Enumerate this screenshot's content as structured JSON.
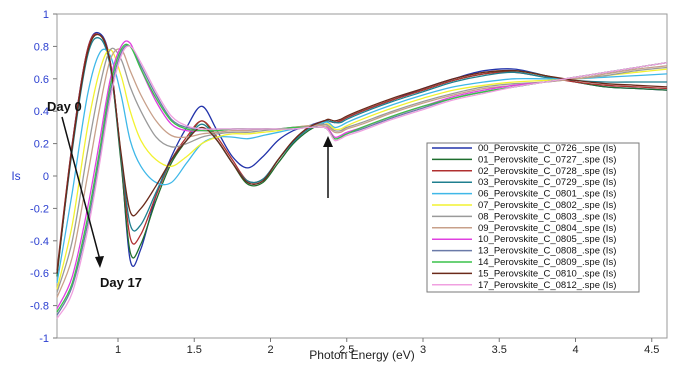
{
  "chart_data": {
    "type": "line",
    "title": "",
    "xlabel": "Photon Energy (eV)",
    "ylabel": "Is",
    "xlim": [
      0.6,
      4.6
    ],
    "ylim": [
      -1,
      1
    ],
    "x_ticks": [
      1,
      1.5,
      2,
      2.5,
      3,
      3.5,
      4,
      4.5
    ],
    "x_tick_labels": [
      "1",
      "1.5",
      "2",
      "2.5",
      "3",
      "3.5",
      "4",
      "4.5"
    ],
    "y_ticks": [
      -1,
      -0.8,
      -0.6,
      -0.4,
      -0.2,
      0,
      0.2,
      0.4,
      0.6,
      0.8,
      1
    ],
    "y_tick_labels": [
      "-1",
      "-0.8",
      "-0.6",
      "-0.4",
      "-0.2",
      "0",
      "0.2",
      "0.4",
      "0.6",
      "0.8",
      "1"
    ],
    "grid": false,
    "legend_position": "center-right",
    "annotations": [
      {
        "text": "Day 0",
        "x": 0.62,
        "y": 0.35
      },
      {
        "text": "Day 17",
        "x": 0.93,
        "y": -0.67
      }
    ],
    "series": [
      {
        "name": "00_Perovskite_C_0726_.spe (Is)",
        "color": "#2233aa",
        "x": [
          0.6,
          0.7,
          0.8,
          0.88,
          0.95,
          1.02,
          1.08,
          1.15,
          1.25,
          1.35,
          1.45,
          1.55,
          1.65,
          1.75,
          1.85,
          1.95,
          2.05,
          2.15,
          2.25,
          2.35,
          2.38,
          2.42,
          2.46,
          2.5,
          2.6,
          2.8,
          3.0,
          3.2,
          3.4,
          3.6,
          3.8,
          4.0,
          4.2,
          4.4,
          4.6
        ],
        "y": [
          -0.6,
          0.2,
          0.78,
          0.88,
          0.7,
          0.1,
          -0.52,
          -0.45,
          -0.12,
          0.12,
          0.3,
          0.43,
          0.28,
          0.12,
          0.05,
          0.12,
          0.22,
          0.28,
          0.31,
          0.34,
          0.34,
          0.33,
          0.34,
          0.36,
          0.4,
          0.47,
          0.54,
          0.6,
          0.65,
          0.66,
          0.62,
          0.58,
          0.55,
          0.54,
          0.53
        ]
      },
      {
        "name": "01_Perovskite_C_0727_.spe (Is)",
        "color": "#1e6e2e",
        "x": [
          0.6,
          0.7,
          0.8,
          0.88,
          0.95,
          1.02,
          1.08,
          1.15,
          1.25,
          1.35,
          1.45,
          1.55,
          1.65,
          1.75,
          1.85,
          1.95,
          2.05,
          2.15,
          2.25,
          2.35,
          2.38,
          2.42,
          2.46,
          2.5,
          2.6,
          2.8,
          3.0,
          3.2,
          3.4,
          3.6,
          3.8,
          4.0,
          4.2,
          4.4,
          4.6
        ],
        "y": [
          -0.62,
          0.18,
          0.76,
          0.87,
          0.68,
          0.08,
          -0.47,
          -0.42,
          -0.15,
          0.08,
          0.22,
          0.34,
          0.22,
          0.08,
          -0.05,
          -0.04,
          0.08,
          0.2,
          0.28,
          0.33,
          0.34,
          0.33,
          0.34,
          0.36,
          0.4,
          0.47,
          0.53,
          0.59,
          0.63,
          0.65,
          0.62,
          0.58,
          0.55,
          0.54,
          0.53
        ]
      },
      {
        "name": "02_Perovskite_C_0728_.spe (Is)",
        "color": "#b03030",
        "x": [
          0.6,
          0.7,
          0.8,
          0.88,
          0.95,
          1.02,
          1.08,
          1.15,
          1.25,
          1.35,
          1.45,
          1.55,
          1.65,
          1.75,
          1.85,
          1.95,
          2.05,
          2.15,
          2.25,
          2.35,
          2.38,
          2.42,
          2.46,
          2.5,
          2.6,
          2.8,
          3.0,
          3.2,
          3.4,
          3.6,
          3.8,
          4.0,
          4.2,
          4.4,
          4.6
        ],
        "y": [
          -0.58,
          0.2,
          0.78,
          0.87,
          0.7,
          0.12,
          -0.38,
          -0.36,
          -0.12,
          0.1,
          0.24,
          0.34,
          0.24,
          0.1,
          -0.03,
          -0.02,
          0.1,
          0.22,
          0.3,
          0.34,
          0.34,
          0.33,
          0.34,
          0.36,
          0.4,
          0.47,
          0.53,
          0.59,
          0.63,
          0.64,
          0.61,
          0.58,
          0.56,
          0.55,
          0.54
        ]
      },
      {
        "name": "03_Perovskite_C_0729_.spe (Is)",
        "color": "#1f7f8f",
        "x": [
          0.6,
          0.7,
          0.8,
          0.88,
          0.95,
          1.02,
          1.08,
          1.15,
          1.25,
          1.35,
          1.45,
          1.55,
          1.65,
          1.75,
          1.85,
          1.95,
          2.05,
          2.15,
          2.25,
          2.35,
          2.38,
          2.42,
          2.46,
          2.5,
          2.6,
          2.8,
          3.0,
          3.2,
          3.4,
          3.6,
          3.8,
          4.0,
          4.2,
          4.4,
          4.6
        ],
        "y": [
          -0.6,
          0.16,
          0.74,
          0.85,
          0.67,
          0.12,
          -0.3,
          -0.3,
          -0.1,
          0.1,
          0.22,
          0.32,
          0.22,
          0.08,
          -0.03,
          -0.02,
          0.1,
          0.21,
          0.29,
          0.33,
          0.34,
          0.33,
          0.33,
          0.35,
          0.39,
          0.46,
          0.52,
          0.58,
          0.62,
          0.64,
          0.61,
          0.59,
          0.58,
          0.58,
          0.58
        ]
      },
      {
        "name": "06_Perovskite_C_0801_.spe (Is)",
        "color": "#3fb8e8",
        "x": [
          0.6,
          0.7,
          0.8,
          0.88,
          0.95,
          1.02,
          1.08,
          1.15,
          1.25,
          1.35,
          1.45,
          1.55,
          1.65,
          1.75,
          1.85,
          1.95,
          2.05,
          2.15,
          2.25,
          2.35,
          2.38,
          2.42,
          2.46,
          2.5,
          2.6,
          2.8,
          3.0,
          3.2,
          3.4,
          3.6,
          3.8,
          4.0,
          4.2,
          4.4,
          4.6
        ],
        "y": [
          -0.66,
          -0.1,
          0.5,
          0.76,
          0.74,
          0.5,
          0.22,
          0.06,
          -0.04,
          -0.04,
          0.08,
          0.2,
          0.24,
          0.24,
          0.23,
          0.25,
          0.27,
          0.29,
          0.31,
          0.33,
          0.33,
          0.3,
          0.31,
          0.33,
          0.37,
          0.44,
          0.5,
          0.55,
          0.58,
          0.6,
          0.6,
          0.6,
          0.61,
          0.62,
          0.63
        ]
      },
      {
        "name": "07_Perovskite_C_0802_.spe (Is)",
        "color": "#f2f230",
        "x": [
          0.6,
          0.7,
          0.8,
          0.88,
          0.95,
          1.02,
          1.08,
          1.15,
          1.25,
          1.35,
          1.45,
          1.55,
          1.65,
          1.75,
          1.85,
          1.95,
          2.05,
          2.15,
          2.25,
          2.35,
          2.38,
          2.42,
          2.46,
          2.5,
          2.6,
          2.8,
          3.0,
          3.2,
          3.4,
          3.6,
          3.8,
          4.0,
          4.2,
          4.4,
          4.6
        ],
        "y": [
          -0.7,
          -0.3,
          0.3,
          0.65,
          0.78,
          0.62,
          0.4,
          0.22,
          0.1,
          0.06,
          0.12,
          0.2,
          0.24,
          0.26,
          0.26,
          0.27,
          0.28,
          0.3,
          0.31,
          0.32,
          0.32,
          0.29,
          0.29,
          0.31,
          0.35,
          0.42,
          0.48,
          0.53,
          0.56,
          0.58,
          0.59,
          0.6,
          0.62,
          0.64,
          0.66
        ]
      },
      {
        "name": "08_Perovskite_C_0803_.spe (Is)",
        "color": "#9a9a9a",
        "x": [
          0.6,
          0.7,
          0.8,
          0.88,
          0.95,
          1.02,
          1.08,
          1.15,
          1.25,
          1.35,
          1.45,
          1.55,
          1.65,
          1.75,
          1.85,
          1.95,
          2.05,
          2.15,
          2.25,
          2.35,
          2.38,
          2.42,
          2.46,
          2.5,
          2.6,
          2.8,
          3.0,
          3.2,
          3.4,
          3.6,
          3.8,
          4.0,
          4.2,
          4.4,
          4.6
        ],
        "y": [
          -0.72,
          -0.4,
          0.15,
          0.55,
          0.78,
          0.72,
          0.55,
          0.4,
          0.24,
          0.18,
          0.2,
          0.24,
          0.26,
          0.27,
          0.27,
          0.28,
          0.29,
          0.3,
          0.31,
          0.32,
          0.31,
          0.28,
          0.28,
          0.3,
          0.33,
          0.4,
          0.46,
          0.51,
          0.55,
          0.57,
          0.58,
          0.6,
          0.62,
          0.65,
          0.67
        ]
      },
      {
        "name": "09_Perovskite_C_0804_.spe (Is)",
        "color": "#c8a08a",
        "x": [
          0.6,
          0.7,
          0.8,
          0.88,
          0.95,
          1.02,
          1.08,
          1.15,
          1.25,
          1.35,
          1.45,
          1.55,
          1.65,
          1.75,
          1.85,
          1.95,
          2.05,
          2.15,
          2.25,
          2.35,
          2.38,
          2.42,
          2.46,
          2.5,
          2.6,
          2.8,
          3.0,
          3.2,
          3.4,
          3.6,
          3.8,
          4.0,
          4.2,
          4.4,
          4.6
        ],
        "y": [
          -0.75,
          -0.5,
          0.0,
          0.42,
          0.72,
          0.78,
          0.65,
          0.5,
          0.34,
          0.25,
          0.24,
          0.26,
          0.27,
          0.28,
          0.28,
          0.29,
          0.29,
          0.3,
          0.31,
          0.31,
          0.3,
          0.27,
          0.27,
          0.29,
          0.32,
          0.39,
          0.45,
          0.5,
          0.54,
          0.56,
          0.58,
          0.6,
          0.63,
          0.66,
          0.68
        ]
      },
      {
        "name": "10_Perovskite_C_0805_.spe (Is)",
        "color": "#e040e0",
        "x": [
          0.6,
          0.7,
          0.8,
          0.88,
          0.95,
          1.02,
          1.08,
          1.15,
          1.25,
          1.35,
          1.45,
          1.55,
          1.65,
          1.75,
          1.85,
          1.95,
          2.05,
          2.15,
          2.25,
          2.35,
          2.38,
          2.42,
          2.46,
          2.5,
          2.6,
          2.8,
          3.0,
          3.2,
          3.4,
          3.6,
          3.8,
          4.0,
          4.2,
          4.4,
          4.6
        ],
        "y": [
          -0.82,
          -0.62,
          -0.2,
          0.22,
          0.6,
          0.8,
          0.82,
          0.66,
          0.46,
          0.32,
          0.28,
          0.28,
          0.28,
          0.29,
          0.29,
          0.29,
          0.29,
          0.3,
          0.3,
          0.3,
          0.29,
          0.24,
          0.25,
          0.27,
          0.3,
          0.37,
          0.43,
          0.49,
          0.53,
          0.56,
          0.58,
          0.61,
          0.64,
          0.67,
          0.7
        ]
      },
      {
        "name": "13_Perovskite_C_0808_.spe (Is)",
        "color": "#6a7aa8",
        "x": [
          0.6,
          0.7,
          0.8,
          0.88,
          0.95,
          1.02,
          1.08,
          1.15,
          1.25,
          1.35,
          1.45,
          1.55,
          1.65,
          1.75,
          1.85,
          1.95,
          2.05,
          2.15,
          2.25,
          2.35,
          2.38,
          2.42,
          2.46,
          2.5,
          2.6,
          2.8,
          3.0,
          3.2,
          3.4,
          3.6,
          3.8,
          4.0,
          4.2,
          4.4,
          4.6
        ],
        "y": [
          -0.86,
          -0.68,
          -0.3,
          0.12,
          0.52,
          0.76,
          0.8,
          0.68,
          0.5,
          0.35,
          0.3,
          0.29,
          0.29,
          0.29,
          0.29,
          0.29,
          0.29,
          0.29,
          0.3,
          0.3,
          0.28,
          0.23,
          0.24,
          0.26,
          0.29,
          0.36,
          0.42,
          0.48,
          0.52,
          0.55,
          0.58,
          0.61,
          0.64,
          0.67,
          0.7
        ]
      },
      {
        "name": "14_Perovskite_C_0809_.spe (Is)",
        "color": "#3ac24a",
        "x": [
          0.6,
          0.7,
          0.8,
          0.88,
          0.95,
          1.02,
          1.08,
          1.15,
          1.25,
          1.35,
          1.45,
          1.55,
          1.65,
          1.75,
          1.85,
          1.95,
          2.05,
          2.15,
          2.25,
          2.35,
          2.38,
          2.42,
          2.46,
          2.5,
          2.6,
          2.8,
          3.0,
          3.2,
          3.4,
          3.6,
          3.8,
          4.0,
          4.2,
          4.4,
          4.6
        ],
        "y": [
          -0.84,
          -0.66,
          -0.26,
          0.16,
          0.56,
          0.78,
          0.8,
          0.66,
          0.48,
          0.34,
          0.29,
          0.28,
          0.28,
          0.29,
          0.29,
          0.29,
          0.29,
          0.3,
          0.3,
          0.3,
          0.28,
          0.23,
          0.24,
          0.26,
          0.3,
          0.37,
          0.43,
          0.48,
          0.52,
          0.55,
          0.58,
          0.61,
          0.64,
          0.67,
          0.7
        ]
      },
      {
        "name": "15_Perovskite_C_0810_.spe (Is)",
        "color": "#6b2a1a",
        "x": [
          0.6,
          0.7,
          0.8,
          0.88,
          0.95,
          1.02,
          1.08,
          1.15,
          1.25,
          1.35,
          1.45,
          1.55,
          1.65,
          1.75,
          1.85,
          1.95,
          2.05,
          2.15,
          2.25,
          2.35,
          2.38,
          2.42,
          2.46,
          2.5,
          2.6,
          2.8,
          3.0,
          3.2,
          3.4,
          3.6,
          3.8,
          4.0,
          4.2,
          4.4,
          4.6
        ],
        "y": [
          -0.6,
          0.18,
          0.76,
          0.87,
          0.69,
          0.14,
          -0.22,
          -0.2,
          -0.06,
          0.1,
          0.22,
          0.3,
          0.22,
          0.08,
          -0.04,
          -0.03,
          0.1,
          0.22,
          0.3,
          0.34,
          0.35,
          0.34,
          0.35,
          0.37,
          0.41,
          0.48,
          0.54,
          0.6,
          0.64,
          0.65,
          0.62,
          0.59,
          0.57,
          0.56,
          0.55
        ]
      },
      {
        "name": "17_Perovskite_C_0812_.spe (Is)",
        "color": "#f0a0e0",
        "x": [
          0.6,
          0.7,
          0.8,
          0.88,
          0.95,
          1.02,
          1.08,
          1.15,
          1.25,
          1.35,
          1.45,
          1.55,
          1.65,
          1.75,
          1.85,
          1.95,
          2.05,
          2.15,
          2.25,
          2.35,
          2.38,
          2.42,
          2.46,
          2.5,
          2.6,
          2.8,
          3.0,
          3.2,
          3.4,
          3.6,
          3.8,
          4.0,
          4.2,
          4.4,
          4.6
        ],
        "y": [
          -0.88,
          -0.72,
          -0.34,
          0.08,
          0.48,
          0.74,
          0.8,
          0.7,
          0.52,
          0.37,
          0.31,
          0.29,
          0.29,
          0.29,
          0.29,
          0.29,
          0.29,
          0.29,
          0.3,
          0.3,
          0.28,
          0.22,
          0.23,
          0.25,
          0.28,
          0.35,
          0.41,
          0.47,
          0.51,
          0.55,
          0.58,
          0.61,
          0.64,
          0.67,
          0.7
        ]
      }
    ]
  }
}
